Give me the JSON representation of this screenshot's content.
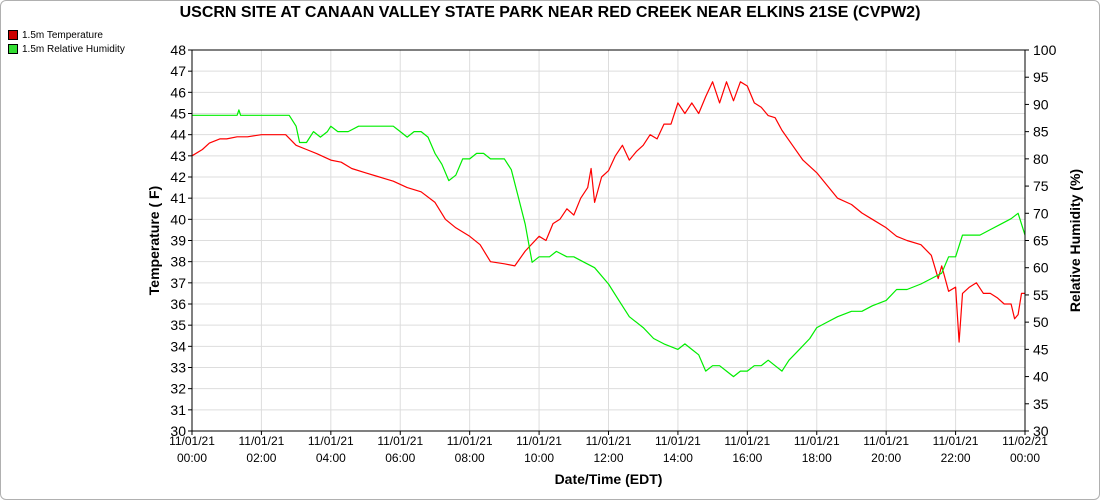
{
  "chart_data": {
    "type": "line",
    "title": "USCRN SITE AT CANAAN VALLEY STATE PARK NEAR RED CREEK NEAR ELKINS 21SE (CVPW2)",
    "xlabel": "Date/Time (EDT)",
    "ylabel": "Temperature ( F)",
    "y2label": "Relative Humidity (%)",
    "ylim": [
      30,
      48
    ],
    "y2lim": [
      30,
      100
    ],
    "xlim_hours": [
      0,
      24
    ],
    "grid": true,
    "legend_position": "top-left",
    "yticks": [
      "30",
      "31",
      "32",
      "33",
      "34",
      "35",
      "36",
      "37",
      "38",
      "39",
      "40",
      "41",
      "42",
      "43",
      "44",
      "45",
      "46",
      "47",
      "48"
    ],
    "y2ticks": [
      "30",
      "35",
      "40",
      "45",
      "50",
      "55",
      "60",
      "65",
      "70",
      "75",
      "80",
      "85",
      "90",
      "95",
      "100"
    ],
    "xticks": [
      {
        "date": "11/01/21",
        "time": "00:00"
      },
      {
        "date": "11/01/21",
        "time": "02:00"
      },
      {
        "date": "11/01/21",
        "time": "04:00"
      },
      {
        "date": "11/01/21",
        "time": "06:00"
      },
      {
        "date": "11/01/21",
        "time": "08:00"
      },
      {
        "date": "11/01/21",
        "time": "10:00"
      },
      {
        "date": "11/01/21",
        "time": "12:00"
      },
      {
        "date": "11/01/21",
        "time": "14:00"
      },
      {
        "date": "11/01/21",
        "time": "16:00"
      },
      {
        "date": "11/01/21",
        "time": "18:00"
      },
      {
        "date": "11/01/21",
        "time": "20:00"
      },
      {
        "date": "11/01/21",
        "time": "22:00"
      },
      {
        "date": "11/02/21",
        "time": "00:00"
      }
    ],
    "series": [
      {
        "name": "1.5m Temperature",
        "axis": "left",
        "color": "#ff0000",
        "points": [
          [
            0.0,
            43.0
          ],
          [
            0.3,
            43.3
          ],
          [
            0.5,
            43.6
          ],
          [
            0.8,
            43.8
          ],
          [
            1.0,
            43.8
          ],
          [
            1.3,
            43.9
          ],
          [
            1.6,
            43.9
          ],
          [
            2.0,
            44.0
          ],
          [
            2.4,
            44.0
          ],
          [
            2.7,
            44.0
          ],
          [
            3.0,
            43.5
          ],
          [
            3.3,
            43.3
          ],
          [
            3.6,
            43.1
          ],
          [
            4.0,
            42.8
          ],
          [
            4.3,
            42.7
          ],
          [
            4.6,
            42.4
          ],
          [
            5.0,
            42.2
          ],
          [
            5.4,
            42.0
          ],
          [
            5.8,
            41.8
          ],
          [
            6.2,
            41.5
          ],
          [
            6.6,
            41.3
          ],
          [
            7.0,
            40.8
          ],
          [
            7.3,
            40.0
          ],
          [
            7.6,
            39.6
          ],
          [
            8.0,
            39.2
          ],
          [
            8.3,
            38.8
          ],
          [
            8.6,
            38.0
          ],
          [
            9.0,
            37.9
          ],
          [
            9.3,
            37.8
          ],
          [
            9.6,
            38.5
          ],
          [
            10.0,
            39.2
          ],
          [
            10.2,
            39.0
          ],
          [
            10.4,
            39.8
          ],
          [
            10.6,
            40.0
          ],
          [
            10.8,
            40.5
          ],
          [
            11.0,
            40.2
          ],
          [
            11.2,
            41.0
          ],
          [
            11.4,
            41.5
          ],
          [
            11.5,
            42.4
          ],
          [
            11.6,
            40.8
          ],
          [
            11.8,
            42.0
          ],
          [
            12.0,
            42.3
          ],
          [
            12.2,
            43.0
          ],
          [
            12.4,
            43.5
          ],
          [
            12.6,
            42.8
          ],
          [
            12.8,
            43.2
          ],
          [
            13.0,
            43.5
          ],
          [
            13.2,
            44.0
          ],
          [
            13.4,
            43.8
          ],
          [
            13.6,
            44.5
          ],
          [
            13.8,
            44.5
          ],
          [
            14.0,
            45.5
          ],
          [
            14.2,
            45.0
          ],
          [
            14.4,
            45.5
          ],
          [
            14.6,
            45.0
          ],
          [
            14.8,
            45.8
          ],
          [
            15.0,
            46.5
          ],
          [
            15.2,
            45.5
          ],
          [
            15.4,
            46.5
          ],
          [
            15.6,
            45.6
          ],
          [
            15.8,
            46.5
          ],
          [
            16.0,
            46.3
          ],
          [
            16.2,
            45.5
          ],
          [
            16.4,
            45.3
          ],
          [
            16.6,
            44.9
          ],
          [
            16.8,
            44.8
          ],
          [
            17.0,
            44.2
          ],
          [
            17.3,
            43.5
          ],
          [
            17.6,
            42.8
          ],
          [
            18.0,
            42.2
          ],
          [
            18.3,
            41.6
          ],
          [
            18.6,
            41.0
          ],
          [
            19.0,
            40.7
          ],
          [
            19.3,
            40.3
          ],
          [
            19.6,
            40.0
          ],
          [
            20.0,
            39.6
          ],
          [
            20.3,
            39.2
          ],
          [
            20.6,
            39.0
          ],
          [
            21.0,
            38.8
          ],
          [
            21.3,
            38.3
          ],
          [
            21.5,
            37.2
          ],
          [
            21.6,
            37.8
          ],
          [
            21.8,
            36.6
          ],
          [
            22.0,
            36.8
          ],
          [
            22.1,
            34.2
          ],
          [
            22.2,
            36.5
          ],
          [
            22.4,
            36.8
          ],
          [
            22.6,
            37.0
          ],
          [
            22.8,
            36.5
          ],
          [
            23.0,
            36.5
          ],
          [
            23.2,
            36.3
          ],
          [
            23.4,
            36.0
          ],
          [
            23.6,
            36.0
          ],
          [
            23.7,
            35.3
          ],
          [
            23.8,
            35.5
          ],
          [
            23.9,
            36.5
          ],
          [
            24.0,
            36.5
          ]
        ]
      },
      {
        "name": "1.5m Relative Humidity",
        "axis": "right",
        "color": "#00ee00",
        "points": [
          [
            0.0,
            88
          ],
          [
            0.5,
            88
          ],
          [
            1.0,
            88
          ],
          [
            1.3,
            88
          ],
          [
            1.35,
            89
          ],
          [
            1.4,
            88
          ],
          [
            2.0,
            88
          ],
          [
            2.5,
            88
          ],
          [
            2.8,
            88
          ],
          [
            3.0,
            86
          ],
          [
            3.1,
            83
          ],
          [
            3.3,
            83
          ],
          [
            3.5,
            85
          ],
          [
            3.7,
            84
          ],
          [
            3.9,
            85
          ],
          [
            4.0,
            86
          ],
          [
            4.2,
            85
          ],
          [
            4.5,
            85
          ],
          [
            4.8,
            86
          ],
          [
            5.0,
            86
          ],
          [
            5.3,
            86
          ],
          [
            5.5,
            86
          ],
          [
            5.8,
            86
          ],
          [
            6.0,
            85
          ],
          [
            6.2,
            84
          ],
          [
            6.4,
            85
          ],
          [
            6.6,
            85
          ],
          [
            6.8,
            84
          ],
          [
            7.0,
            81
          ],
          [
            7.2,
            79
          ],
          [
            7.4,
            76
          ],
          [
            7.6,
            77
          ],
          [
            7.8,
            80
          ],
          [
            8.0,
            80
          ],
          [
            8.2,
            81
          ],
          [
            8.4,
            81
          ],
          [
            8.6,
            80
          ],
          [
            8.8,
            80
          ],
          [
            9.0,
            80
          ],
          [
            9.2,
            78
          ],
          [
            9.4,
            73
          ],
          [
            9.6,
            68
          ],
          [
            9.8,
            61
          ],
          [
            10.0,
            62
          ],
          [
            10.3,
            62
          ],
          [
            10.5,
            63
          ],
          [
            10.8,
            62
          ],
          [
            11.0,
            62
          ],
          [
            11.3,
            61
          ],
          [
            11.6,
            60
          ],
          [
            12.0,
            57
          ],
          [
            12.3,
            54
          ],
          [
            12.6,
            51
          ],
          [
            13.0,
            49
          ],
          [
            13.3,
            47
          ],
          [
            13.6,
            46
          ],
          [
            14.0,
            45
          ],
          [
            14.2,
            46
          ],
          [
            14.4,
            45
          ],
          [
            14.6,
            44
          ],
          [
            14.8,
            41
          ],
          [
            15.0,
            42
          ],
          [
            15.2,
            42
          ],
          [
            15.4,
            41
          ],
          [
            15.6,
            40
          ],
          [
            15.8,
            41
          ],
          [
            16.0,
            41
          ],
          [
            16.2,
            42
          ],
          [
            16.4,
            42
          ],
          [
            16.6,
            43
          ],
          [
            16.8,
            42
          ],
          [
            17.0,
            41
          ],
          [
            17.2,
            43
          ],
          [
            17.5,
            45
          ],
          [
            17.8,
            47
          ],
          [
            18.0,
            49
          ],
          [
            18.3,
            50
          ],
          [
            18.6,
            51
          ],
          [
            19.0,
            52
          ],
          [
            19.3,
            52
          ],
          [
            19.6,
            53
          ],
          [
            20.0,
            54
          ],
          [
            20.3,
            56
          ],
          [
            20.6,
            56
          ],
          [
            21.0,
            57
          ],
          [
            21.3,
            58
          ],
          [
            21.6,
            59
          ],
          [
            21.8,
            62
          ],
          [
            22.0,
            62
          ],
          [
            22.2,
            66
          ],
          [
            22.4,
            66
          ],
          [
            22.7,
            66
          ],
          [
            23.0,
            67
          ],
          [
            23.3,
            68
          ],
          [
            23.6,
            69
          ],
          [
            23.8,
            70
          ],
          [
            24.0,
            66
          ]
        ]
      }
    ]
  }
}
